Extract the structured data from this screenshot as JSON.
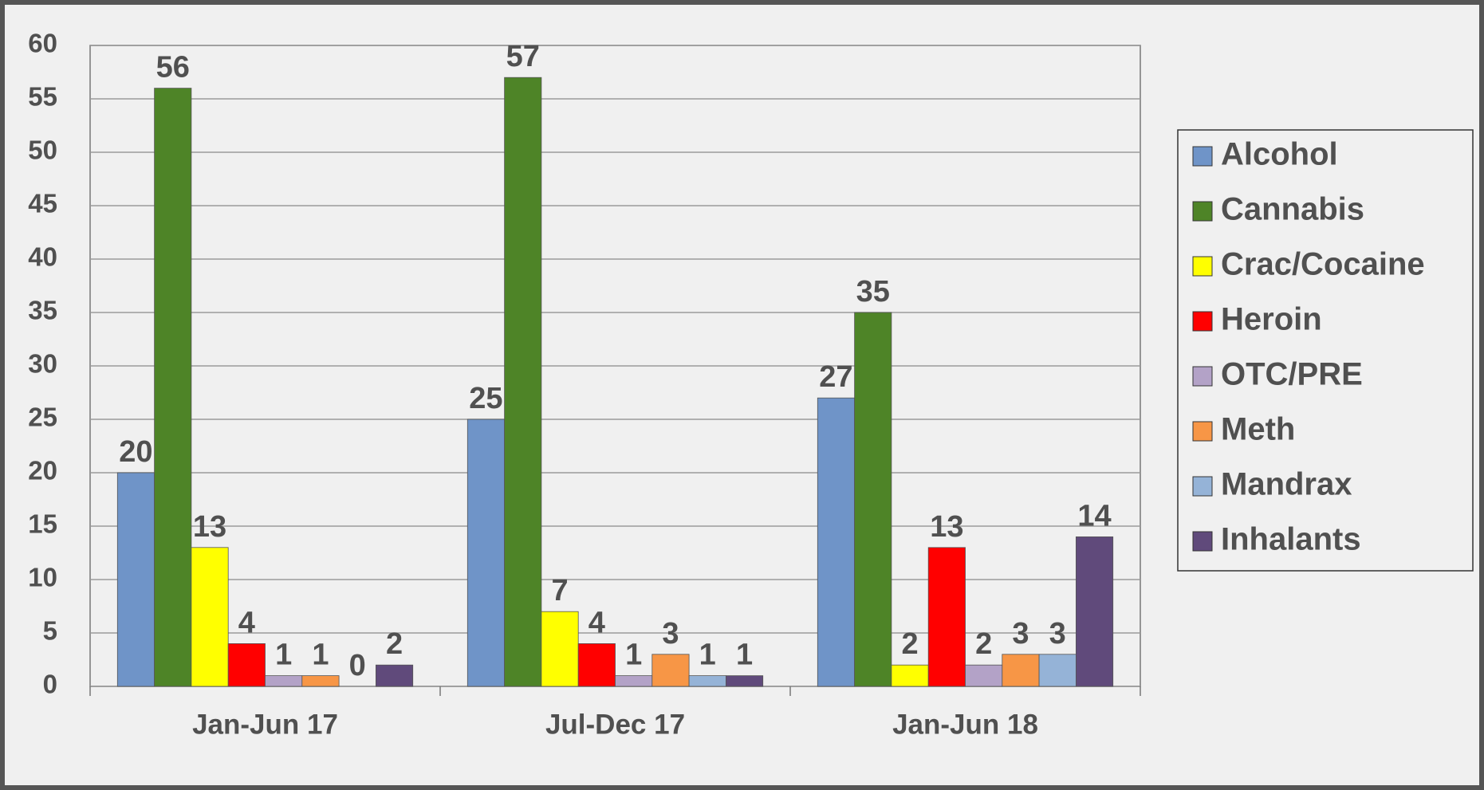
{
  "chart_data": {
    "type": "bar",
    "categories": [
      "Jan-Jun 17",
      "Jul-Dec 17",
      "Jan-Jun 18"
    ],
    "series": [
      {
        "name": "Alcohol",
        "color": "#6f94c8",
        "values": [
          20,
          25,
          27
        ]
      },
      {
        "name": "Cannabis",
        "color": "#4e8427",
        "values": [
          56,
          57,
          35
        ]
      },
      {
        "name": "Crac/Cocaine",
        "color": "#ffff00",
        "values": [
          13,
          7,
          2
        ]
      },
      {
        "name": "Heroin",
        "color": "#ff0000",
        "values": [
          4,
          4,
          13
        ]
      },
      {
        "name": "OTC/PRE",
        "color": "#b3a2c7",
        "values": [
          1,
          1,
          2
        ]
      },
      {
        "name": "Meth",
        "color": "#f79646",
        "values": [
          1,
          3,
          3
        ]
      },
      {
        "name": "Mandrax",
        "color": "#95b3d7",
        "values": [
          0,
          1,
          3
        ]
      },
      {
        "name": "Inhalants",
        "color": "#604a7b",
        "values": [
          2,
          1,
          14
        ]
      }
    ],
    "ylim": [
      0,
      60
    ],
    "yticks": [
      0,
      5,
      10,
      15,
      20,
      25,
      30,
      35,
      40,
      45,
      50,
      55,
      60
    ],
    "grid": true,
    "legend": "right"
  }
}
